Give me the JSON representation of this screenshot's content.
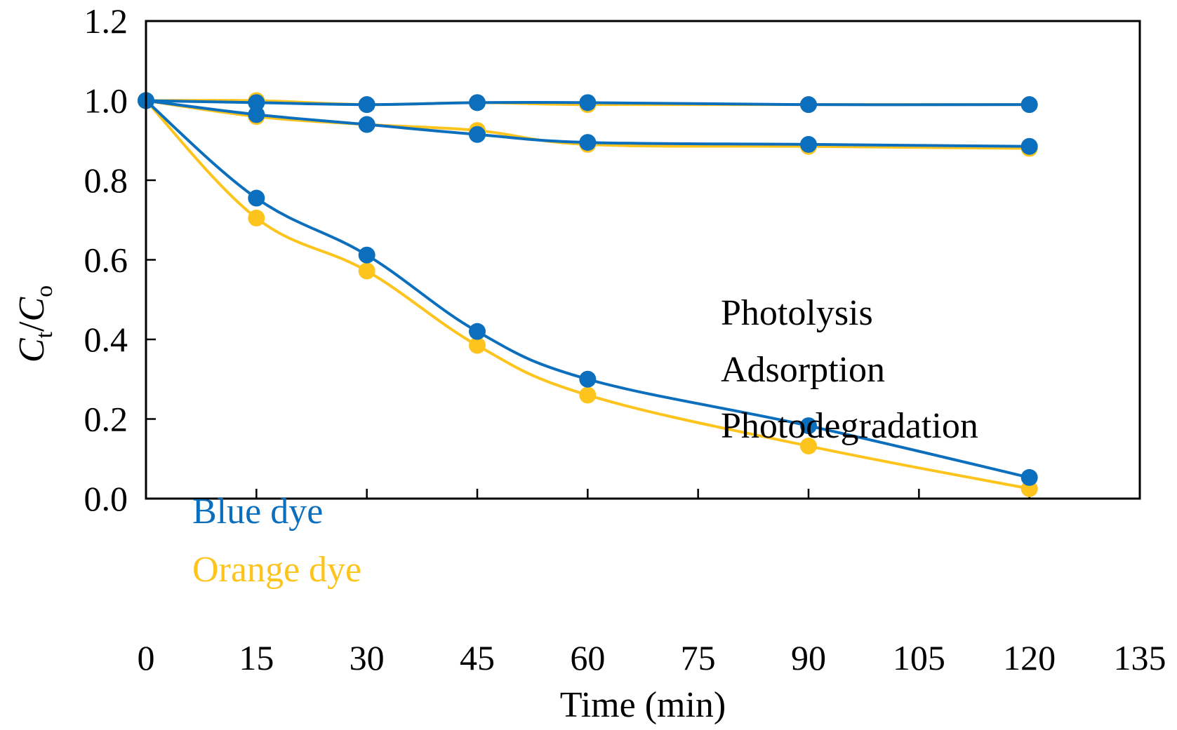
{
  "chart_data": {
    "type": "line",
    "xlabel": "Time (min)",
    "ylabel": {
      "main1": "C",
      "sub1": "t",
      "sep": "/",
      "main2": "C",
      "sub2": "o"
    },
    "xlim": [
      0,
      135
    ],
    "ylim": [
      0,
      1.2
    ],
    "xticks": [
      "0",
      "15",
      "30",
      "45",
      "60",
      "75",
      "90",
      "105",
      "120",
      "135"
    ],
    "yticks": [
      "0.0",
      "0.2",
      "0.4",
      "0.6",
      "0.8",
      "1.0",
      "1.2"
    ],
    "grid": false,
    "x": [
      0,
      15,
      30,
      45,
      60,
      90,
      120
    ],
    "colors": {
      "blue": "#0b6fbd",
      "orange": "#fcc41c"
    },
    "series": [
      {
        "group": "Photolysis",
        "dye": "orange",
        "values": [
          1.0,
          1.0,
          0.99,
          0.995,
          0.99,
          0.99,
          0.99
        ]
      },
      {
        "group": "Photolysis",
        "dye": "blue",
        "values": [
          1.0,
          0.995,
          0.99,
          0.995,
          0.995,
          0.99,
          0.99
        ]
      },
      {
        "group": "Adsorption",
        "dye": "orange",
        "values": [
          1.0,
          0.96,
          0.94,
          0.925,
          0.89,
          0.885,
          0.88
        ]
      },
      {
        "group": "Adsorption",
        "dye": "blue",
        "values": [
          1.0,
          0.965,
          0.94,
          0.915,
          0.895,
          0.89,
          0.885
        ]
      },
      {
        "group": "Photodegradation",
        "dye": "orange",
        "values": [
          1.0,
          0.705,
          0.572,
          0.385,
          0.26,
          0.132,
          0.025
        ]
      },
      {
        "group": "Photodegradation",
        "dye": "blue",
        "values": [
          1.0,
          0.755,
          0.612,
          0.42,
          0.3,
          0.183,
          0.053
        ]
      }
    ],
    "annotations": [
      "Photolysis",
      "Adsorption",
      "Photodegradation"
    ],
    "legend": {
      "blue": "Blue dye",
      "orange": "Orange dye",
      "placement": "bottom-left"
    }
  }
}
